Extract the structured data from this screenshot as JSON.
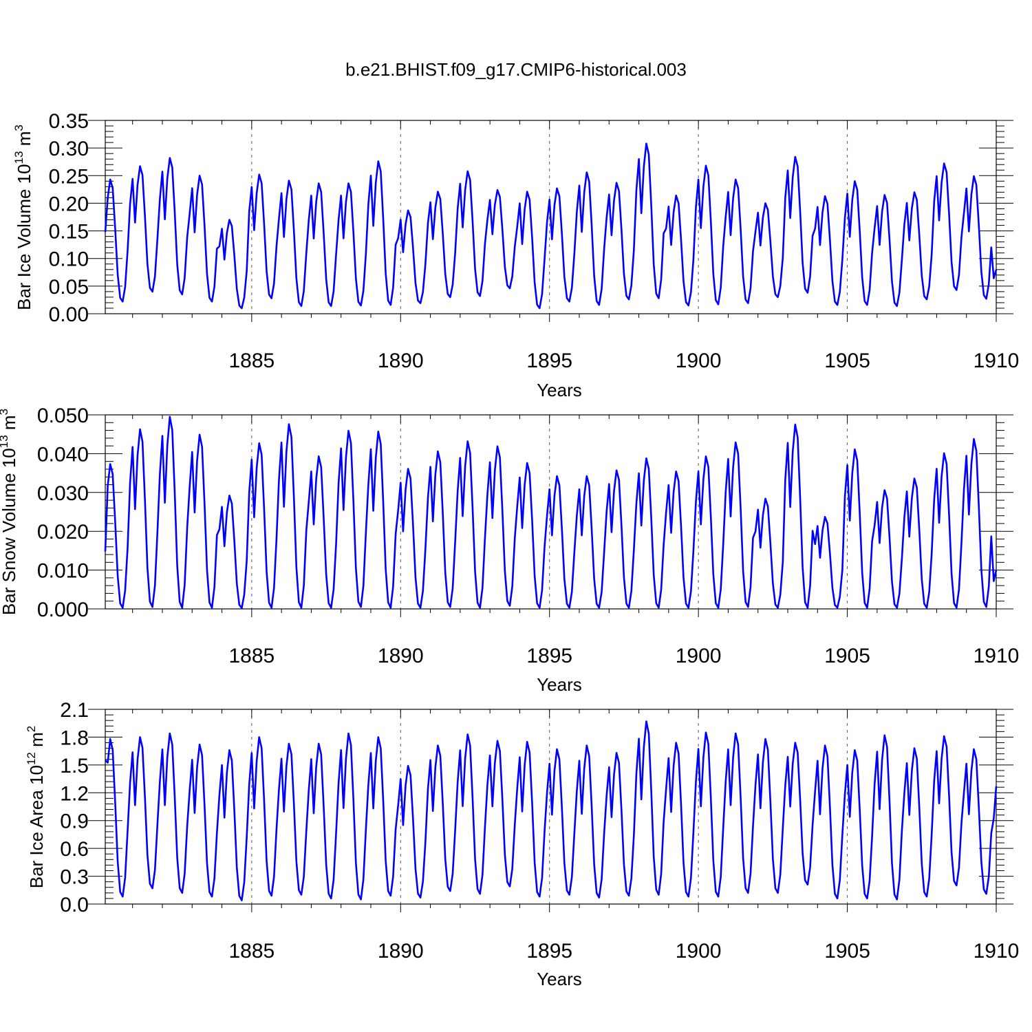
{
  "title": "b.e21.BHIST.f09_g17.CMIP6-historical.003",
  "line_color": "#0000ff",
  "chart_data": [
    {
      "type": "line",
      "ylabel": "Bar Ice Volume",
      "unit_mantissa": "10",
      "unit_exp": "13",
      "unit_base": "m",
      "unit_base_exp": "3",
      "xlabel": "Years",
      "xlim": [
        1880.083,
        1910.0
      ],
      "ylim": [
        0,
        0.35
      ],
      "xticks": [
        1885,
        1890,
        1895,
        1900,
        1905,
        1910
      ],
      "xtick_labels": [
        "1885",
        "1890",
        "1895",
        "1900",
        "1905",
        "1910"
      ],
      "yticks": [
        0,
        0.05,
        0.1,
        0.15,
        0.2,
        0.25,
        0.3,
        0.35
      ],
      "ytick_labels": [
        "0.00",
        "0.05",
        "0.10",
        "0.15",
        "0.20",
        "0.25",
        "0.30",
        "0.35"
      ],
      "vlines": [
        1885,
        1890,
        1895,
        1900,
        1905
      ],
      "peaks": [
        0.243,
        0.267,
        0.282,
        0.25,
        0.17,
        0.252,
        0.241,
        0.236,
        0.236,
        0.276,
        0.187,
        0.221,
        0.258,
        0.224,
        0.221,
        0.227,
        0.256,
        0.237,
        0.308,
        0.214,
        0.268,
        0.243,
        0.2,
        0.284,
        0.213,
        0.24,
        0.215,
        0.22,
        0.272,
        0.249
      ],
      "troughs": [
        0.022,
        0.04,
        0.035,
        0.022,
        0.01,
        0.028,
        0.014,
        0.014,
        0.015,
        0.016,
        0.019,
        0.03,
        0.032,
        0.046,
        0.01,
        0.022,
        0.016,
        0.026,
        0.028,
        0.015,
        0.017,
        0.019,
        0.03,
        0.038,
        0.016,
        0.016,
        0.014,
        0.026,
        0.043,
        0.027
      ],
      "start_value": 0.148,
      "end_value": 0.08
    },
    {
      "type": "line",
      "ylabel": "Bar Snow Volume",
      "unit_mantissa": "10",
      "unit_exp": "13",
      "unit_base": "m",
      "unit_base_exp": "3",
      "xlabel": "Years",
      "xlim": [
        1880.083,
        1910.0
      ],
      "ylim": [
        0,
        0.05
      ],
      "xticks": [
        1885,
        1890,
        1895,
        1900,
        1905,
        1910
      ],
      "xtick_labels": [
        "1885",
        "1890",
        "1895",
        "1900",
        "1905",
        "1910"
      ],
      "yticks": [
        0,
        0.01,
        0.02,
        0.03,
        0.04,
        0.05
      ],
      "ytick_labels": [
        "0.000",
        "0.010",
        "0.020",
        "0.030",
        "0.040",
        "0.050"
      ],
      "vlines": [
        1885,
        1890,
        1895,
        1900,
        1905
      ],
      "peaks": [
        0.0373,
        0.0463,
        0.0495,
        0.0449,
        0.0292,
        0.0427,
        0.0476,
        0.0393,
        0.0459,
        0.0457,
        0.0361,
        0.0406,
        0.0432,
        0.0419,
        0.0376,
        0.0342,
        0.0342,
        0.0357,
        0.0388,
        0.0354,
        0.0393,
        0.0429,
        0.0284,
        0.0475,
        0.0237,
        0.0411,
        0.0306,
        0.0336,
        0.0401,
        0.0438
      ],
      "troughs": [
        0.0003,
        0.0005,
        0.0003,
        0.0003,
        0.0002,
        0.0003,
        0.0003,
        0.0003,
        0.0005,
        0.0003,
        0.0003,
        0.0005,
        0.0003,
        0.0008,
        0.0003,
        0.0003,
        0.0003,
        0.0003,
        0.0003,
        0.0003,
        0.0003,
        0.0005,
        0.0003,
        0.0003,
        0.0003,
        0.0003,
        0.0003,
        0.0003,
        0.0003,
        0.0005
      ],
      "start_value": 0.0148,
      "end_value": 0.01
    },
    {
      "type": "line",
      "ylabel": "Bar Ice Area",
      "unit_mantissa": "10",
      "unit_exp": "12",
      "unit_base": "m",
      "unit_base_exp": "2",
      "xlabel": "Years",
      "xlim": [
        1880.083,
        1910.0
      ],
      "ylim": [
        0,
        2.1
      ],
      "xticks": [
        1885,
        1890,
        1895,
        1900,
        1905,
        1910
      ],
      "xtick_labels": [
        "1885",
        "1890",
        "1895",
        "1900",
        "1905",
        "1910"
      ],
      "yticks": [
        0,
        0.3,
        0.6,
        0.9,
        1.2,
        1.5,
        1.8,
        2.1
      ],
      "ytick_labels": [
        "0.0",
        "0.3",
        "0.6",
        "0.9",
        "1.2",
        "1.5",
        "1.8",
        "2.1"
      ],
      "vlines": [
        1885,
        1890,
        1895,
        1900,
        1905
      ],
      "peaks": [
        1.78,
        1.8,
        1.84,
        1.72,
        1.66,
        1.8,
        1.73,
        1.73,
        1.84,
        1.8,
        1.49,
        1.71,
        1.83,
        1.76,
        1.75,
        1.67,
        1.71,
        1.63,
        1.97,
        1.74,
        1.85,
        1.84,
        1.78,
        1.74,
        1.71,
        1.66,
        1.82,
        1.68,
        1.81,
        1.67
      ],
      "troughs": [
        0.08,
        0.17,
        0.12,
        0.08,
        0.04,
        0.09,
        0.1,
        0.06,
        0.05,
        0.09,
        0.07,
        0.14,
        0.11,
        0.19,
        0.08,
        0.1,
        0.07,
        0.09,
        0.1,
        0.08,
        0.08,
        0.12,
        0.12,
        0.21,
        0.06,
        0.06,
        0.05,
        0.08,
        0.2,
        0.11
      ],
      "start_value": 1.55,
      "end_value": 1.27
    }
  ]
}
